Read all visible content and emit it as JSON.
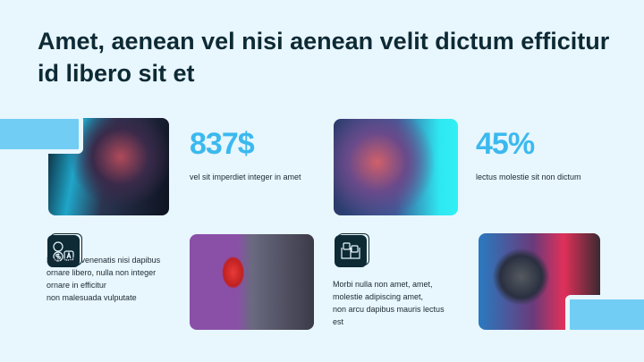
{
  "title": "Amet, aenean vel nisi aenean velit dictum efficitur id libero sit et",
  "stats": [
    {
      "value": "837$",
      "caption": "vel sit imperdiet integer in amet"
    },
    {
      "value": "45%",
      "caption": "lectus molestie sit non dictum"
    }
  ],
  "features": [
    {
      "icon": "translation-currency-icon",
      "lines": [
        "Leo, velit venenatis nisi dapibus",
        "ornare libero, nulla non integer",
        "ornare in efficitur",
        "non malesuada vulputate"
      ]
    },
    {
      "icon": "book-chat-icon",
      "lines": [
        "Morbi nulla non amet, amet,",
        "molestie adipiscing amet,",
        "non arcu dapibus mauris lectus",
        "est"
      ]
    }
  ],
  "colors": {
    "accent": "#3bb9ee",
    "bar": "#72cdf4",
    "dark": "#0d2a35",
    "background": "#e8f6fd"
  }
}
